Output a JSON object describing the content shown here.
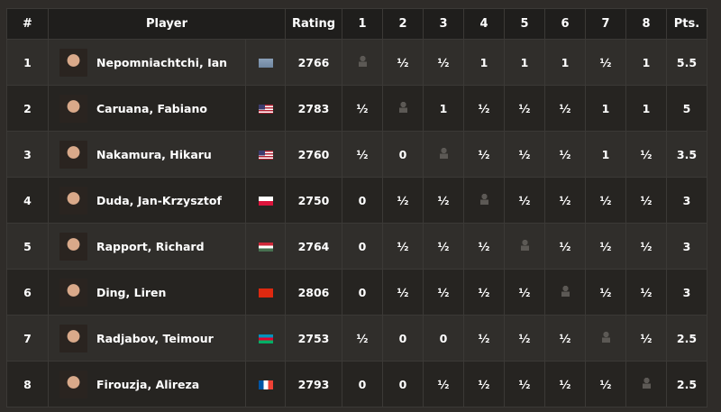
{
  "headers": {
    "rank": "#",
    "player": "Player",
    "rating": "Rating",
    "rounds": [
      "1",
      "2",
      "3",
      "4",
      "5",
      "6",
      "7",
      "8"
    ],
    "pts": "Pts."
  },
  "rows": [
    {
      "rank": "1",
      "name": "Nepomniachtchi, Ian",
      "flag": "fide",
      "rating": "2766",
      "results": [
        "",
        "½",
        "½",
        "1",
        "1",
        "1",
        "½",
        "1"
      ],
      "pts": "5.5"
    },
    {
      "rank": "2",
      "name": "Caruana, Fabiano",
      "flag": "usa",
      "rating": "2783",
      "results": [
        "½",
        "",
        "1",
        "½",
        "½",
        "½",
        "1",
        "1"
      ],
      "pts": "5"
    },
    {
      "rank": "3",
      "name": "Nakamura, Hikaru",
      "flag": "usa",
      "rating": "2760",
      "results": [
        "½",
        "0",
        "",
        "½",
        "½",
        "½",
        "1",
        "½"
      ],
      "pts": "3.5"
    },
    {
      "rank": "4",
      "name": "Duda, Jan-Krzysztof",
      "flag": "poland",
      "rating": "2750",
      "results": [
        "0",
        "½",
        "½",
        "",
        "½",
        "½",
        "½",
        "½"
      ],
      "pts": "3"
    },
    {
      "rank": "5",
      "name": "Rapport, Richard",
      "flag": "hungary",
      "rating": "2764",
      "results": [
        "0",
        "½",
        "½",
        "½",
        "",
        "½",
        "½",
        "½"
      ],
      "pts": "3"
    },
    {
      "rank": "6",
      "name": "Ding, Liren",
      "flag": "china",
      "rating": "2806",
      "results": [
        "0",
        "½",
        "½",
        "½",
        "½",
        "",
        "½",
        "½"
      ],
      "pts": "3"
    },
    {
      "rank": "7",
      "name": "Radjabov, Teimour",
      "flag": "azerbaijan",
      "rating": "2753",
      "results": [
        "½",
        "0",
        "0",
        "½",
        "½",
        "½",
        "",
        "½"
      ],
      "pts": "2.5"
    },
    {
      "rank": "8",
      "name": "Firouzja, Alireza",
      "flag": "france",
      "rating": "2793",
      "results": [
        "0",
        "0",
        "½",
        "½",
        "½",
        "½",
        "½",
        ""
      ],
      "pts": "2.5"
    }
  ]
}
